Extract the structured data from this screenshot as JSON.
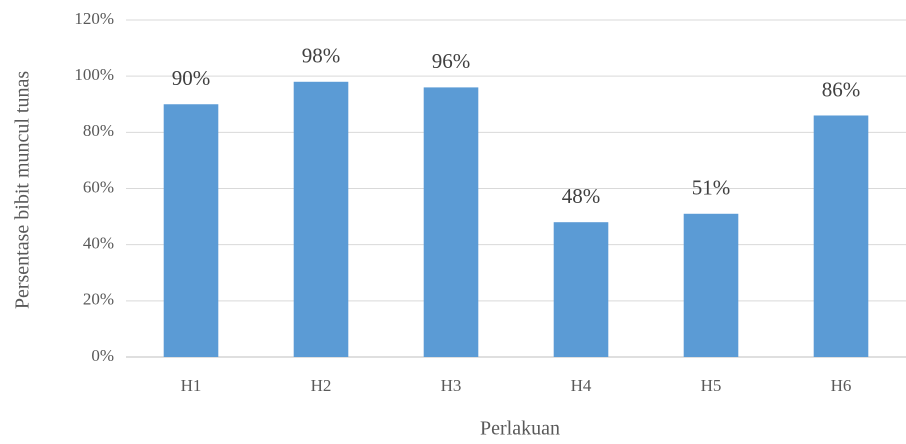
{
  "chart_data": {
    "type": "bar",
    "categories": [
      "H1",
      "H2",
      "H3",
      "H4",
      "H5",
      "H6"
    ],
    "values": [
      90,
      98,
      96,
      48,
      51,
      86
    ],
    "value_labels": [
      "90%",
      "98%",
      "96%",
      "48%",
      "51%",
      "86%"
    ],
    "color": "#5b9bd5",
    "ylim": [
      0,
      120
    ],
    "yticks": [
      {
        "value": 0,
        "label": "0%"
      },
      {
        "value": 20,
        "label": "20%"
      },
      {
        "value": 40,
        "label": "40%"
      },
      {
        "value": 60,
        "label": "60%"
      },
      {
        "value": 80,
        "label": "80%"
      },
      {
        "value": 100,
        "label": "100%"
      },
      {
        "value": 120,
        "label": "120%"
      }
    ],
    "xlabel": "Perlakuan",
    "ylabel": "Persentase bibit muncul tunas",
    "grid": true
  }
}
